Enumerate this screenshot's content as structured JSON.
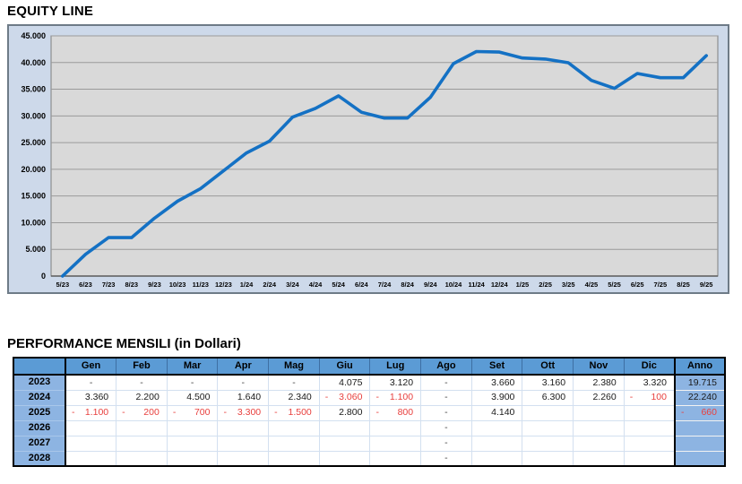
{
  "chart_data": {
    "type": "line",
    "title": "EQUITY LINE",
    "xlabel": "",
    "ylabel": "",
    "x": [
      "5/23",
      "6/23",
      "7/23",
      "8/23",
      "9/23",
      "10/23",
      "11/23",
      "12/23",
      "1/24",
      "2/24",
      "3/24",
      "4/24",
      "5/24",
      "6/24",
      "7/24",
      "8/24",
      "9/24",
      "10/24",
      "11/24",
      "12/24",
      "1/25",
      "2/25",
      "3/25",
      "4/25",
      "5/25",
      "6/25",
      "7/25",
      "8/25",
      "9/25"
    ],
    "series": [
      {
        "name": "Equity",
        "values": [
          0,
          4075,
          7195,
          7195,
          10855,
          14015,
          16395,
          19715,
          23075,
          25275,
          29775,
          31415,
          33755,
          30695,
          29595,
          29595,
          33495,
          39795,
          42055,
          41955,
          40855,
          40655,
          39955,
          36655,
          35155,
          37955,
          37155,
          37155,
          41295
        ]
      }
    ],
    "ylim": [
      0,
      45000
    ],
    "ytick_values": [
      0,
      5000,
      10000,
      15000,
      20000,
      25000,
      30000,
      35000,
      40000,
      45000
    ],
    "ytick_labels": [
      "0",
      "5.000",
      "10.000",
      "15.000",
      "20.000",
      "25.000",
      "30.000",
      "35.000",
      "40.000",
      "45.000"
    ],
    "grid": "horizontal",
    "legend": "none",
    "colors": {
      "line": "#1471c4",
      "frame_bg": "#cdd9ea",
      "frame_border": "#6e7b87",
      "plot_bg": "#d9d9d9",
      "plot_border": "#7f7f7f",
      "grid": "#9a9a9a",
      "axis": "#5a5a5a",
      "tick_text": "#000000"
    }
  },
  "performance_table": {
    "title": "PERFORMANCE MENSILI (in Dollari)",
    "unit": "Dollari",
    "columns": [
      "Gen",
      "Feb",
      "Mar",
      "Apr",
      "Mag",
      "Giu",
      "Lug",
      "Ago",
      "Set",
      "Ott",
      "Nov",
      "Dic"
    ],
    "anno_label": "Anno",
    "rows": [
      {
        "year": "2023",
        "cells": [
          "-",
          "-",
          "-",
          "-",
          "-",
          "4.075",
          "3.120",
          "-",
          "3.660",
          "3.160",
          "2.380",
          "3.320"
        ],
        "anno": "19.715"
      },
      {
        "year": "2024",
        "cells": [
          "3.360",
          "2.200",
          "4.500",
          "1.640",
          "2.340",
          "-3.060",
          "-1.100",
          "-",
          "3.900",
          "6.300",
          "2.260",
          "-100"
        ],
        "anno": "22.240"
      },
      {
        "year": "2025",
        "cells": [
          "-1.100",
          "-200",
          "-700",
          "-3.300",
          "-1.500",
          "2.800",
          "-800",
          "-",
          "4.140",
          "",
          "",
          ""
        ],
        "anno": "-660"
      },
      {
        "year": "2026",
        "cells": [
          "",
          "",
          "",
          "",
          "",
          "",
          "",
          "-",
          "",
          "",
          "",
          ""
        ],
        "anno": ""
      },
      {
        "year": "2027",
        "cells": [
          "",
          "",
          "",
          "",
          "",
          "",
          "",
          "-",
          "",
          "",
          "",
          ""
        ],
        "anno": ""
      },
      {
        "year": "2028",
        "cells": [
          "",
          "",
          "",
          "",
          "",
          "",
          "",
          "-",
          "",
          "",
          "",
          ""
        ],
        "anno": ""
      }
    ],
    "colors": {
      "header_bg": "#5b9bd5",
      "year_bg": "#8db4e2",
      "anno_bg": "#8db4e2",
      "negative_text": "#e8403e",
      "grid": "#d3e0f0",
      "border": "#000000"
    }
  }
}
